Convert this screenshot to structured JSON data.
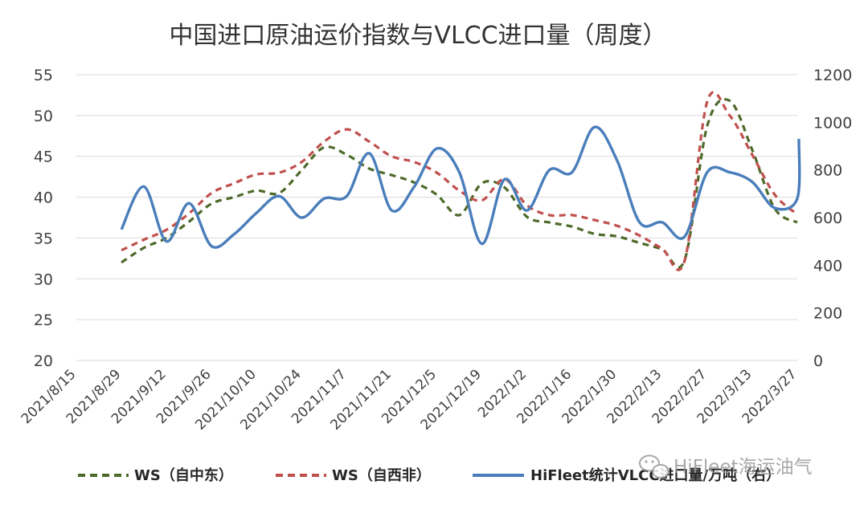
{
  "chart_data": {
    "type": "line",
    "title": "中国进口原油运价指数与VLCC进口量（周度）",
    "y_left": {
      "ticks": [
        "20",
        "25",
        "30",
        "35",
        "40",
        "45",
        "50",
        "55"
      ],
      "ylim": [
        20,
        55
      ]
    },
    "y_right": {
      "ticks": [
        "0",
        "200",
        "400",
        "600",
        "800",
        "1000",
        "1200"
      ],
      "ylim": [
        0,
        1200
      ]
    },
    "x_tick_labels": [
      "2021/8/15",
      "2021/8/29",
      "2021/9/12",
      "2021/9/26",
      "2021/10/10",
      "2021/10/24",
      "2021/11/7",
      "2021/11/21",
      "2021/12/5",
      "2021/12/19",
      "2022/1/2",
      "2022/1/16",
      "2022/1/30",
      "2022/2/13",
      "2022/2/27",
      "2022/3/13",
      "2022/3/27"
    ],
    "grid": true,
    "legend_position": "bottom",
    "series": [
      {
        "name": "WS（自中东）",
        "axis": "left",
        "color": "#4e6a2a",
        "dash": "dashed",
        "points": [
          [
            "2021/8/29",
            32.0
          ],
          [
            "2021/9/5",
            33.8
          ],
          [
            "2021/9/12",
            35.0
          ],
          [
            "2021/9/19",
            37.0
          ],
          [
            "2021/9/26",
            39.2
          ],
          [
            "2021/10/3",
            40.0
          ],
          [
            "2021/10/10",
            40.8
          ],
          [
            "2021/10/17",
            40.5
          ],
          [
            "2021/10/24",
            43.3
          ],
          [
            "2021/10/31",
            46.1
          ],
          [
            "2021/11/7",
            45.2
          ],
          [
            "2021/11/14",
            43.5
          ],
          [
            "2021/11/21",
            42.7
          ],
          [
            "2021/11/28",
            41.8
          ],
          [
            "2021/12/5",
            40.3
          ],
          [
            "2021/12/12",
            37.8
          ],
          [
            "2021/12/19",
            41.7
          ],
          [
            "2021/12/26",
            41.2
          ],
          [
            "2022/1/2",
            37.6
          ],
          [
            "2022/1/9",
            36.9
          ],
          [
            "2022/1/16",
            36.4
          ],
          [
            "2022/1/23",
            35.5
          ],
          [
            "2022/1/30",
            35.2
          ],
          [
            "2022/2/6",
            34.4
          ],
          [
            "2022/2/13",
            33.6
          ],
          [
            "2022/2/20",
            32.3
          ],
          [
            "2022/2/27",
            48.7
          ],
          [
            "2022/3/6",
            51.8
          ],
          [
            "2022/3/13",
            45.8
          ],
          [
            "2022/3/20",
            38.6
          ],
          [
            "2022/3/27",
            36.9
          ]
        ]
      },
      {
        "name": "WS（自西非）",
        "axis": "left",
        "color": "#c0504d",
        "dash": "dashed",
        "points": [
          [
            "2021/8/29",
            33.5
          ],
          [
            "2021/9/5",
            34.8
          ],
          [
            "2021/9/12",
            36.0
          ],
          [
            "2021/9/19",
            38.0
          ],
          [
            "2021/9/26",
            40.5
          ],
          [
            "2021/10/3",
            41.7
          ],
          [
            "2021/10/10",
            42.8
          ],
          [
            "2021/10/17",
            43.0
          ],
          [
            "2021/10/24",
            44.3
          ],
          [
            "2021/10/31",
            46.8
          ],
          [
            "2021/11/7",
            48.3
          ],
          [
            "2021/11/14",
            46.8
          ],
          [
            "2021/11/21",
            45.0
          ],
          [
            "2021/11/28",
            44.3
          ],
          [
            "2021/12/5",
            43.0
          ],
          [
            "2021/12/12",
            40.8
          ],
          [
            "2021/12/19",
            39.6
          ],
          [
            "2021/12/26",
            42.2
          ],
          [
            "2022/1/2",
            39.0
          ],
          [
            "2022/1/9",
            37.8
          ],
          [
            "2022/1/16",
            37.8
          ],
          [
            "2022/1/23",
            37.2
          ],
          [
            "2022/1/30",
            36.5
          ],
          [
            "2022/2/6",
            35.3
          ],
          [
            "2022/2/13",
            33.7
          ],
          [
            "2022/2/20",
            32.2
          ],
          [
            "2022/2/27",
            51.7
          ],
          [
            "2022/3/6",
            50.0
          ],
          [
            "2022/3/13",
            45.2
          ],
          [
            "2022/3/20",
            40.3
          ],
          [
            "2022/3/27",
            37.9
          ]
        ]
      },
      {
        "name": "HiFleet统计VLCC进口量/万吨（右）",
        "axis": "right",
        "color": "#4a7ebb",
        "dash": "solid",
        "points": [
          [
            "2021/8/29",
            550
          ],
          [
            "2021/9/5",
            730
          ],
          [
            "2021/9/12",
            500
          ],
          [
            "2021/9/19",
            660
          ],
          [
            "2021/9/26",
            480
          ],
          [
            "2021/10/3",
            530
          ],
          [
            "2021/10/10",
            620
          ],
          [
            "2021/10/17",
            690
          ],
          [
            "2021/10/24",
            600
          ],
          [
            "2021/10/31",
            680
          ],
          [
            "2021/11/7",
            690
          ],
          [
            "2021/11/14",
            870
          ],
          [
            "2021/11/21",
            630
          ],
          [
            "2021/11/28",
            730
          ],
          [
            "2021/12/5",
            890
          ],
          [
            "2021/12/12",
            790
          ],
          [
            "2021/12/19",
            490
          ],
          [
            "2021/12/26",
            760
          ],
          [
            "2022/1/2",
            630
          ],
          [
            "2022/1/9",
            800
          ],
          [
            "2022/1/16",
            790
          ],
          [
            "2022/1/23",
            980
          ],
          [
            "2022/1/30",
            840
          ],
          [
            "2022/2/6",
            580
          ],
          [
            "2022/2/13",
            580
          ],
          [
            "2022/2/20",
            520
          ],
          [
            "2022/2/27",
            790
          ],
          [
            "2022/3/6",
            790
          ],
          [
            "2022/3/13",
            750
          ],
          [
            "2022/3/20",
            640
          ],
          [
            "2022/3/27",
            680
          ],
          [
            "2022/4/3",
            930
          ]
        ]
      }
    ]
  },
  "watermark": "HiFleet海运油气"
}
